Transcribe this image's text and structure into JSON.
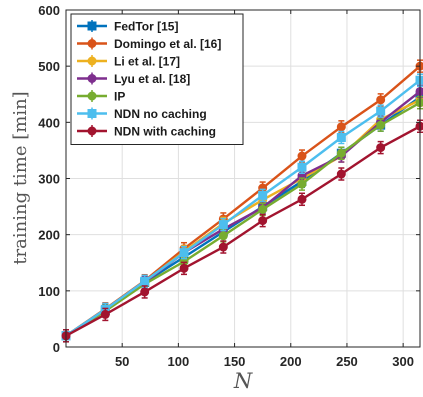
{
  "chart_data": {
    "type": "line",
    "xlabel": "N",
    "ylabel": "training time [min]",
    "xlim": [
      0,
      315
    ],
    "ylim": [
      0,
      600
    ],
    "xticks": [
      50,
      100,
      150,
      200,
      250,
      300
    ],
    "yticks": [
      0,
      100,
      200,
      300,
      400,
      500,
      600
    ],
    "grid": true,
    "legend_position": "top-left",
    "x": [
      0,
      35,
      70,
      105,
      140,
      175,
      210,
      245,
      280,
      315
    ],
    "series": [
      {
        "name": "FedTor [15]",
        "color": "#0072BD",
        "marker": "square",
        "values": [
          20,
          65,
          115,
          160,
          205,
          250,
          295,
          345,
          395,
          445
        ]
      },
      {
        "name": "Domingo et al. [16]",
        "color": "#D95319",
        "marker": "circle",
        "values": [
          20,
          68,
          118,
          175,
          228,
          283,
          340,
          392,
          440,
          500
        ]
      },
      {
        "name": "Li et al. [17]",
        "color": "#EDB120",
        "marker": "circle",
        "values": [
          20,
          66,
          116,
          170,
          220,
          262,
          300,
          340,
          405,
          440
        ]
      },
      {
        "name": "Lyu et al. [18]",
        "color": "#7E2F8E",
        "marker": "circle",
        "values": [
          20,
          66,
          115,
          168,
          210,
          248,
          305,
          340,
          400,
          455
        ]
      },
      {
        "name": "IP",
        "color": "#77AC30",
        "marker": "circle",
        "values": [
          20,
          64,
          112,
          152,
          198,
          245,
          290,
          345,
          395,
          435
        ]
      },
      {
        "name": "NDN no caching",
        "color": "#4DBEEE",
        "marker": "square",
        "values": [
          20,
          67,
          117,
          168,
          218,
          270,
          320,
          373,
          420,
          475
        ]
      },
      {
        "name": "NDN with caching",
        "color": "#A2142F",
        "marker": "circle",
        "values": [
          20,
          58,
          98,
          140,
          178,
          225,
          263,
          308,
          355,
          393
        ]
      }
    ]
  }
}
